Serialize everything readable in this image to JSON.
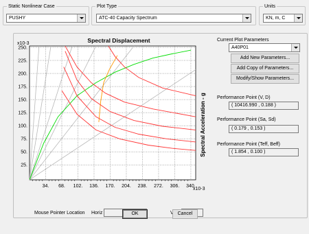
{
  "static_case": {
    "title": "Static Nonlinear Case",
    "value": "PUSHY"
  },
  "plot_type": {
    "title": "Plot Type",
    "value": "ATC-40 Capacity Spectrum"
  },
  "units": {
    "title": "Units",
    "value": "KN, m, C"
  },
  "chart_data": {
    "type": "line",
    "title": "Spectral Displacement",
    "ylabel": "Spectral Acceleration - g",
    "x_multiplier_label": "x10-3",
    "y_multiplier_label": "x10-3",
    "x_ticks": [
      "34.",
      "68.",
      "102.",
      "136.",
      "170.",
      "204.",
      "238.",
      "272.",
      "306.",
      "340."
    ],
    "y_ticks": [
      "250.",
      "225.",
      "200.",
      "175.",
      "150.",
      "125.",
      "100.",
      "75.",
      "50.",
      "25."
    ],
    "xlim": [
      0,
      0.35
    ],
    "ylim": [
      0,
      0.255
    ],
    "grid": true,
    "series": [
      {
        "color": "#00dd00",
        "points": [
          [
            0,
            0
          ],
          [
            0.03,
            0.07
          ],
          [
            0.06,
            0.12
          ],
          [
            0.1,
            0.16
          ],
          [
            0.14,
            0.185
          ],
          [
            0.18,
            0.205
          ],
          [
            0.22,
            0.22
          ],
          [
            0.26,
            0.232
          ],
          [
            0.3,
            0.24
          ],
          [
            0.34,
            0.247
          ]
        ]
      },
      {
        "color": "#ff9900",
        "points": [
          [
            0.146,
            0.11
          ],
          [
            0.15,
            0.15
          ],
          [
            0.156,
            0.185
          ],
          [
            0.168,
            0.21
          ],
          [
            0.185,
            0.237
          ]
        ]
      },
      {
        "color": "#ff3333",
        "points": [
          [
            0.075,
            0.255
          ],
          [
            0.1,
            0.215
          ],
          [
            0.13,
            0.185
          ],
          [
            0.16,
            0.165
          ],
          [
            0.2,
            0.148
          ],
          [
            0.26,
            0.135
          ],
          [
            0.35,
            0.12
          ]
        ]
      },
      {
        "color": "#ff3333",
        "points": [
          [
            0.075,
            0.245
          ],
          [
            0.1,
            0.19
          ],
          [
            0.13,
            0.155
          ],
          [
            0.17,
            0.13
          ],
          [
            0.22,
            0.113
          ],
          [
            0.28,
            0.102
          ],
          [
            0.35,
            0.095
          ]
        ]
      },
      {
        "color": "#ff3333",
        "points": [
          [
            0.072,
            0.215
          ],
          [
            0.1,
            0.16
          ],
          [
            0.14,
            0.12
          ],
          [
            0.18,
            0.1
          ],
          [
            0.23,
            0.087
          ],
          [
            0.29,
            0.078
          ],
          [
            0.35,
            0.072
          ]
        ]
      },
      {
        "color": "#ff3333",
        "points": [
          [
            0.068,
            0.17
          ],
          [
            0.1,
            0.125
          ],
          [
            0.14,
            0.095
          ],
          [
            0.19,
            0.078
          ],
          [
            0.25,
            0.066
          ],
          [
            0.3,
            0.06
          ],
          [
            0.35,
            0.056
          ]
        ]
      },
      {
        "color": "#ff3333",
        "points": [
          [
            0.166,
            0.255
          ],
          [
            0.18,
            0.235
          ],
          [
            0.2,
            0.215
          ],
          [
            0.23,
            0.195
          ],
          [
            0.28,
            0.175
          ],
          [
            0.35,
            0.16
          ]
        ]
      }
    ],
    "radial_lines": [
      [
        0.02,
        0.255
      ],
      [
        0.045,
        0.255
      ],
      [
        0.09,
        0.255
      ],
      [
        0.14,
        0.255
      ],
      [
        0.22,
        0.255
      ],
      [
        0.35,
        0.21
      ]
    ]
  },
  "status": {
    "mouse_label": "Mouse Pointer Location",
    "horiz_label": "Horiz",
    "vert_label": "Vert"
  },
  "params": {
    "current_label": "Current Plot Parameters",
    "current_value": "A40P01",
    "add_new": "Add New Parameters...",
    "add_copy": "Add Copy of Parameters...",
    "modify": "Modify/Show Parameters..."
  },
  "performance": {
    "vd_label": "Performance Point (V, D)",
    "vd_value": "( 10416.990 , 0.188 )",
    "sa_label": "Performance Point (Sa, Sd)",
    "sa_value": "( 0.179 , 0.153 )",
    "teff_label": "Performance Point (Teff, Beff)",
    "teff_value": "( 1.854 , 0.100 )"
  },
  "buttons": {
    "ok": "OK",
    "cancel": "Cancel"
  }
}
